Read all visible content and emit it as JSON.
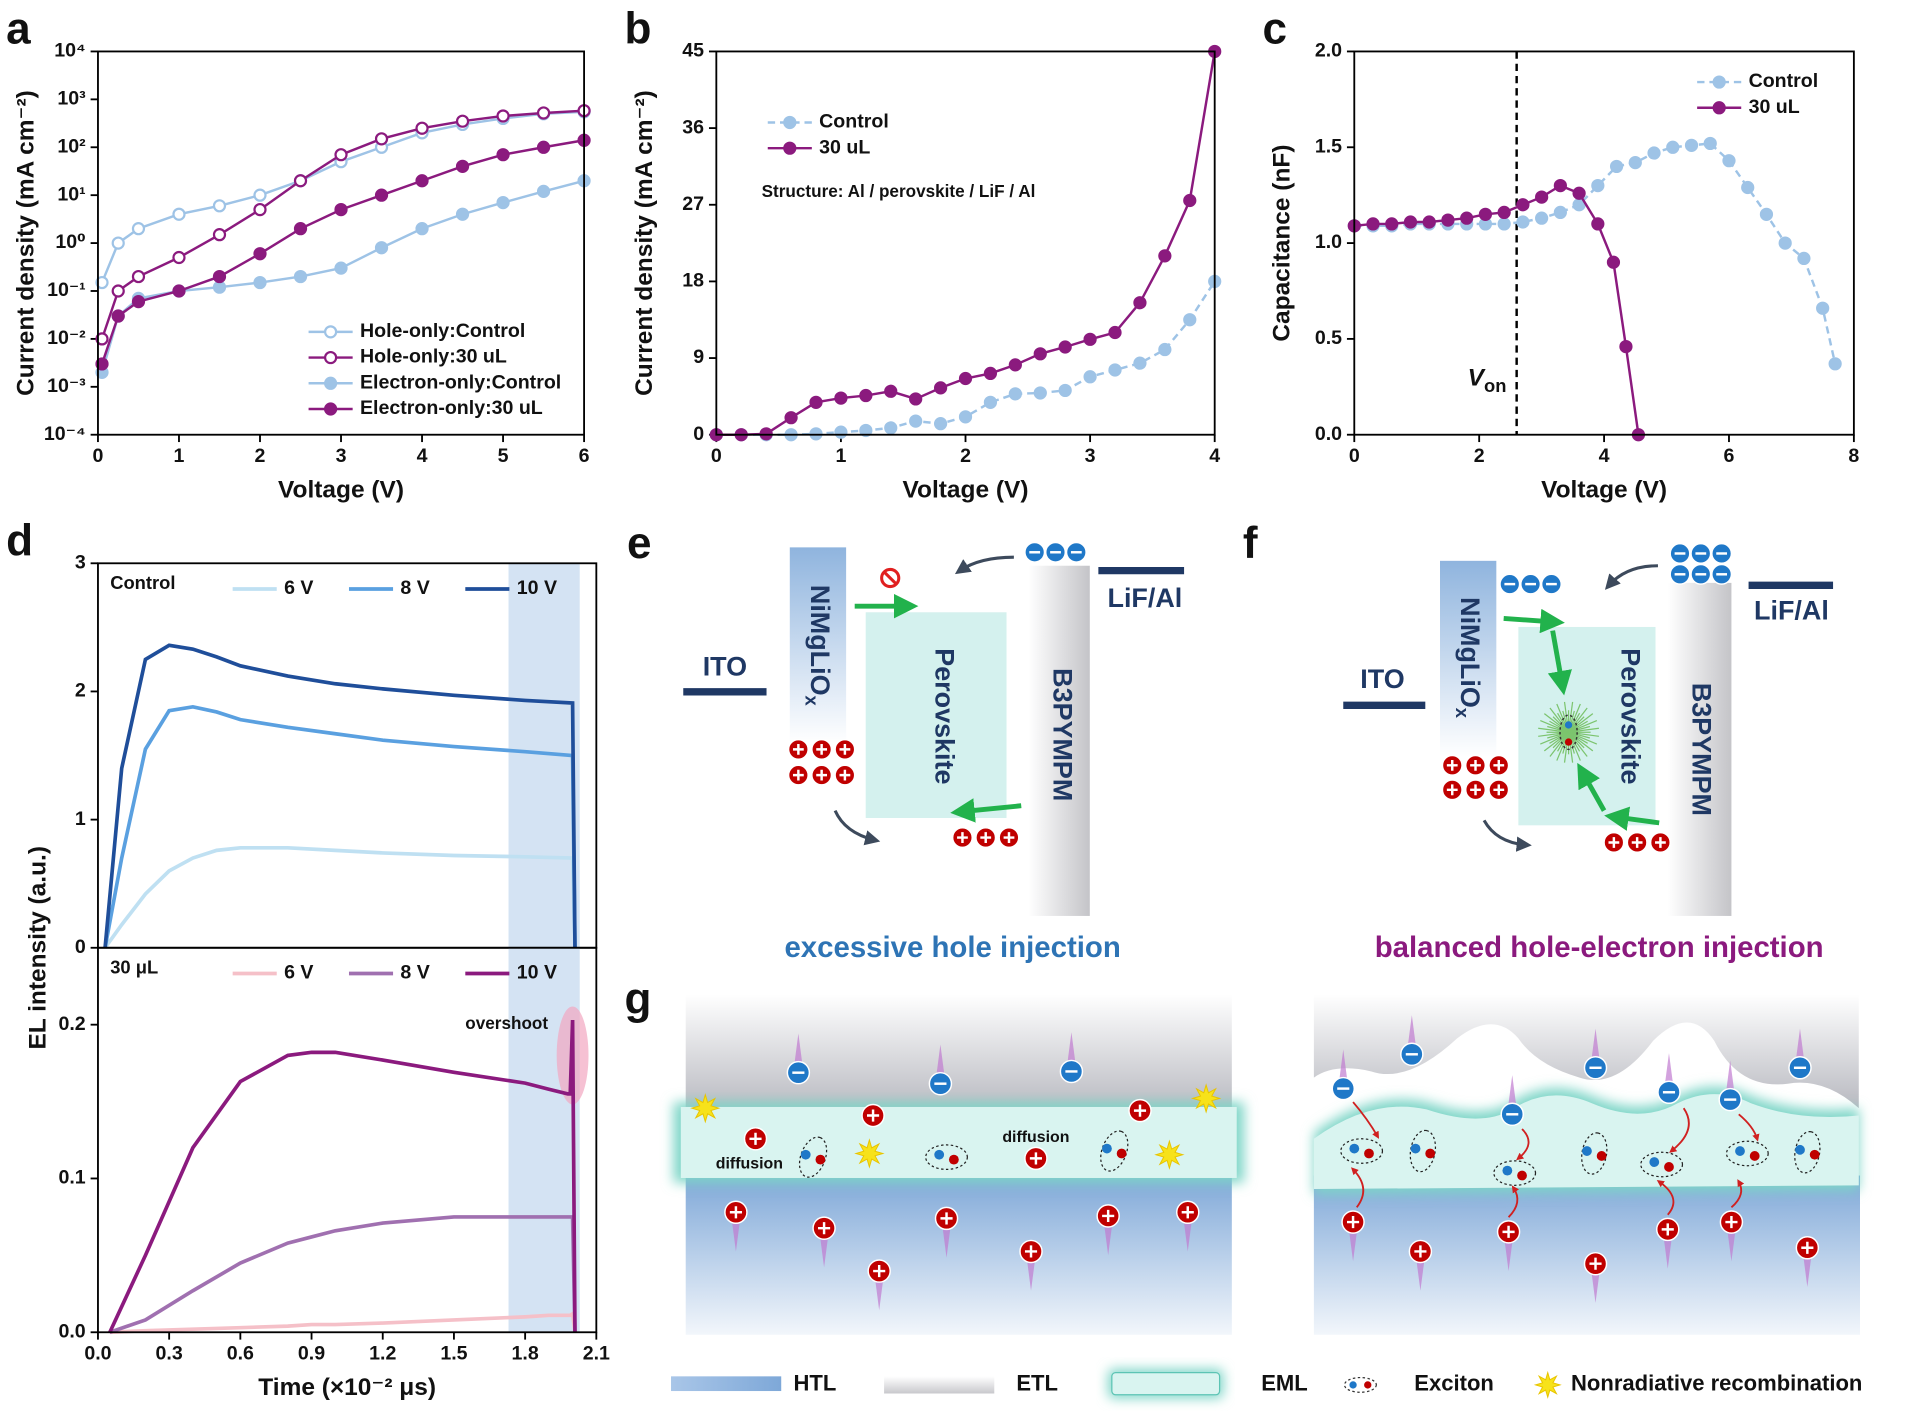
{
  "chart_data": [
    {
      "type": "line",
      "panel": "a",
      "xlabel": "Voltage (V)",
      "ylabel": "Current density (mA cm⁻²)",
      "log_y": true,
      "xlim": [
        0,
        6
      ],
      "xticks": [
        0,
        1,
        2,
        3,
        4,
        5,
        6
      ],
      "ylim": [
        0.0001,
        10000
      ],
      "yticks": [
        {
          "value": 0.0001,
          "label": "10⁻⁴"
        },
        {
          "value": 0.001,
          "label": "10⁻³"
        },
        {
          "value": 0.01,
          "label": "10⁻²"
        },
        {
          "value": 0.1,
          "label": "10⁻¹"
        },
        {
          "value": 1,
          "label": "10⁰"
        },
        {
          "value": 10,
          "label": "10¹"
        },
        {
          "value": 100,
          "label": "10²"
        },
        {
          "value": 1000,
          "label": "10³"
        },
        {
          "value": 10000,
          "label": "10⁴"
        }
      ],
      "legend": "lower right",
      "x": [
        0.05,
        0.25,
        0.5,
        1,
        1.5,
        2,
        2.5,
        3,
        3.5,
        4,
        4.5,
        5,
        5.5,
        6
      ],
      "series": [
        {
          "name": "Hole-only:Control",
          "color": "#9ec3e6",
          "marker": "open",
          "values": [
            0.15,
            1,
            2,
            4,
            6,
            10,
            20,
            50,
            100,
            200,
            300,
            400,
            500,
            550
          ]
        },
        {
          "name": "Hole-only:30 uL",
          "color": "#8b1a7e",
          "marker": "open",
          "values": [
            0.01,
            0.1,
            0.2,
            0.5,
            1.5,
            5,
            20,
            70,
            150,
            250,
            350,
            450,
            520,
            580
          ]
        },
        {
          "name": "Electron-only:Control",
          "color": "#9ec3e6",
          "marker": "filled",
          "values": [
            0.002,
            0.03,
            0.07,
            0.1,
            0.12,
            0.15,
            0.2,
            0.3,
            0.8,
            2,
            4,
            7,
            12,
            20
          ]
        },
        {
          "name": "Electron-only:30 uL",
          "color": "#8b1a7e",
          "marker": "filled",
          "values": [
            0.003,
            0.03,
            0.06,
            0.1,
            0.2,
            0.6,
            2,
            5,
            10,
            20,
            40,
            70,
            100,
            140
          ]
        }
      ]
    },
    {
      "type": "line",
      "panel": "b",
      "xlabel": "Voltage (V)",
      "ylabel": "Current density (mA cm⁻²)",
      "annotation": "Structure: Al / perovskite / LiF / Al",
      "xlim": [
        0,
        4
      ],
      "xticks": [
        0,
        1,
        2,
        3,
        4
      ],
      "ylim": [
        0,
        45
      ],
      "yticks": [
        0,
        9,
        18,
        27,
        36,
        45
      ],
      "legend": "upper left",
      "x": [
        0,
        0.2,
        0.4,
        0.6,
        0.8,
        1.0,
        1.2,
        1.4,
        1.6,
        1.8,
        2.0,
        2.2,
        2.4,
        2.6,
        2.8,
        3.0,
        3.2,
        3.4,
        3.6,
        3.8,
        4.0
      ],
      "series": [
        {
          "name": "Control",
          "color": "#9ec3e6",
          "marker": "filled",
          "linestyle": "dashed",
          "values": [
            0,
            0,
            0,
            0,
            0.1,
            0.3,
            0.5,
            0.8,
            1.6,
            1.3,
            2.1,
            3.8,
            4.8,
            4.9,
            5.2,
            6.8,
            7.6,
            8.4,
            10,
            13.5,
            18
          ]
        },
        {
          "name": "30 uL",
          "color": "#8b1a7e",
          "marker": "filled",
          "values": [
            0,
            0,
            0.1,
            2,
            3.8,
            4.3,
            4.6,
            5.1,
            4.2,
            5.5,
            6.6,
            7.2,
            8.2,
            9.5,
            10.3,
            11.2,
            12,
            15.5,
            21,
            27.5,
            45
          ]
        }
      ]
    },
    {
      "type": "line",
      "panel": "c",
      "xlabel": "Voltage (V)",
      "ylabel": "Capacitance (nF)",
      "xlim": [
        0,
        8
      ],
      "xticks": [
        0,
        2,
        4,
        6,
        8
      ],
      "ylim": [
        0,
        2
      ],
      "yticks": [
        {
          "value": 0,
          "label": "0.0"
        },
        0.5,
        {
          "value": 1,
          "label": "1.0"
        },
        1.5,
        {
          "value": 2,
          "label": "2.0"
        }
      ],
      "legend": "upper right",
      "vline": 2.6,
      "vline_label": "V",
      "vline_label_sub": "on",
      "series": [
        {
          "name": "Control",
          "color": "#9ec3e6",
          "marker": "filled",
          "linestyle": "dashed",
          "x": [
            0,
            0.3,
            0.6,
            0.9,
            1.2,
            1.5,
            1.8,
            2.1,
            2.4,
            2.7,
            3.0,
            3.3,
            3.6,
            3.9,
            4.2,
            4.5,
            4.8,
            5.1,
            5.4,
            5.7,
            6.0,
            6.3,
            6.6,
            6.9,
            7.2,
            7.5,
            7.7
          ],
          "values": [
            1.09,
            1.09,
            1.09,
            1.1,
            1.1,
            1.1,
            1.1,
            1.1,
            1.1,
            1.11,
            1.13,
            1.16,
            1.2,
            1.3,
            1.4,
            1.42,
            1.47,
            1.5,
            1.51,
            1.52,
            1.43,
            1.29,
            1.15,
            1.0,
            0.92,
            0.66,
            0.37
          ]
        },
        {
          "name": "30 uL",
          "color": "#8b1a7e",
          "marker": "filled",
          "x": [
            0,
            0.3,
            0.6,
            0.9,
            1.2,
            1.5,
            1.8,
            2.1,
            2.4,
            2.7,
            3.0,
            3.3,
            3.6,
            3.9,
            4.15,
            4.35,
            4.55
          ],
          "values": [
            1.09,
            1.1,
            1.1,
            1.11,
            1.11,
            1.12,
            1.13,
            1.15,
            1.16,
            1.2,
            1.24,
            1.3,
            1.26,
            1.1,
            0.9,
            0.46,
            0
          ]
        }
      ]
    },
    {
      "type": "line",
      "panel": "d",
      "label": "Control",
      "ylabel": "EL intensity (a.u.)",
      "xlim": [
        0,
        2.1
      ],
      "ylim": [
        0,
        3
      ],
      "yticks": [
        0,
        1,
        2,
        3
      ],
      "legend": "top",
      "highlight": [
        1.73,
        2.03
      ],
      "x": [
        0.03,
        0.1,
        0.2,
        0.3,
        0.4,
        0.5,
        0.6,
        0.8,
        1.0,
        1.2,
        1.5,
        1.8,
        2.0,
        2.01
      ],
      "series": [
        {
          "name": "6 V",
          "color": "#bfe0f2",
          "values": [
            0,
            0.18,
            0.42,
            0.6,
            0.7,
            0.76,
            0.78,
            0.78,
            0.76,
            0.74,
            0.72,
            0.71,
            0.7,
            0
          ]
        },
        {
          "name": "8 V",
          "color": "#5aa0e0",
          "values": [
            0,
            0.7,
            1.55,
            1.85,
            1.88,
            1.84,
            1.78,
            1.72,
            1.67,
            1.62,
            1.57,
            1.53,
            1.5,
            0
          ]
        },
        {
          "name": "10 V",
          "color": "#1f4e9a",
          "values": [
            0,
            1.4,
            2.25,
            2.36,
            2.33,
            2.27,
            2.2,
            2.12,
            2.06,
            2.02,
            1.97,
            1.93,
            1.91,
            0
          ]
        }
      ]
    },
    {
      "type": "line",
      "label": "30 μL",
      "xlabel": "Time (×10⁻² μs)",
      "annotation": "overshoot",
      "xlim": [
        0,
        2.1
      ],
      "xticks": [
        {
          "value": 0,
          "label": "0.0"
        },
        0.3,
        0.6,
        0.9,
        1.2,
        1.5,
        1.8,
        2.1
      ],
      "ylim": [
        0,
        0.25
      ],
      "yticks": [
        {
          "value": 0,
          "label": "0.0"
        },
        0.1,
        0.2
      ],
      "legend": "top",
      "highlight": [
        1.73,
        2.03
      ],
      "x": [
        0.05,
        0.2,
        0.4,
        0.6,
        0.8,
        0.9,
        1.0,
        1.2,
        1.5,
        1.8,
        1.9,
        1.98,
        1.99,
        2.0,
        2.01
      ],
      "series": [
        {
          "name": "6 V",
          "color": "#f5c0c8",
          "values": [
            0,
            0.001,
            0.002,
            0.003,
            0.004,
            0.005,
            0.005,
            0.006,
            0.008,
            0.01,
            0.011,
            0.011,
            0.011,
            0.012,
            0
          ]
        },
        {
          "name": "8 V",
          "color": "#a070b0",
          "values": [
            0,
            0.008,
            0.027,
            0.045,
            0.058,
            0.062,
            0.066,
            0.071,
            0.075,
            0.075,
            0.075,
            0.075,
            0.075,
            0.075,
            0
          ]
        },
        {
          "name": "10 V",
          "color": "#8b1a7e",
          "values": [
            0,
            0.05,
            0.12,
            0.163,
            0.18,
            0.182,
            0.182,
            0.177,
            0.169,
            0.162,
            0.158,
            0.155,
            0.155,
            0.203,
            0
          ]
        }
      ]
    }
  ],
  "diagrams": {
    "e": {
      "panel": "e",
      "anode": "ITO",
      "htl": "NiMgLiO",
      "htl_sub": "x",
      "eml": "Perovskite",
      "etl": "B3PYMPM",
      "cathode": "LiF/Al",
      "caption": "excessive hole injection"
    },
    "f": {
      "panel": "f",
      "anode": "ITO",
      "htl": "NiMgLiO",
      "htl_sub": "x",
      "eml": "Perovskite",
      "etl": "B3PYMPM",
      "cathode": "LiF/Al",
      "caption": "balanced hole-electron injection"
    },
    "g": {
      "panel": "g",
      "labels": [
        "diffusion",
        "diffusion"
      ],
      "legend": [
        "HTL",
        "ETL",
        "EML",
        "Exciton",
        "Nonradiative recombination"
      ]
    }
  }
}
